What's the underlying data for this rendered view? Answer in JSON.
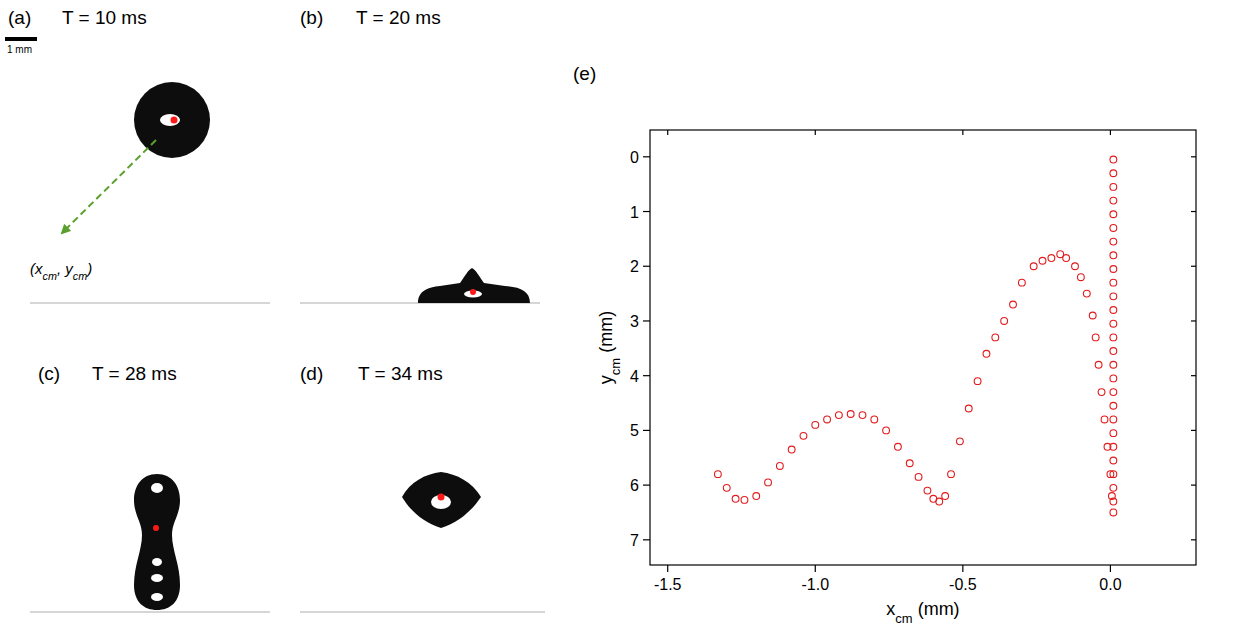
{
  "panels": [
    {
      "letter": "(a)",
      "time": "T = 10 ms"
    },
    {
      "letter": "(b)",
      "time": "T = 20 ms"
    },
    {
      "letter": "(c)",
      "time": "T = 28 ms"
    },
    {
      "letter": "(d)",
      "time": "T = 34 ms"
    }
  ],
  "scale_bar": "1 mm",
  "annotation": [
    {
      "text": "(x"
    },
    {
      "text": "cm",
      "sub": true
    },
    {
      "text": ", y"
    },
    {
      "text": "cm",
      "sub": true
    },
    {
      "text": ")"
    }
  ],
  "chart_label": "(e)",
  "chart_data": {
    "type": "scatter",
    "x_label": [
      {
        "text": "x"
      },
      {
        "text": "cm",
        "sub": true
      },
      {
        "text": " (mm)"
      }
    ],
    "y_label": [
      {
        "text": "y"
      },
      {
        "text": "cm",
        "sub": true
      },
      {
        "text": " (mm)"
      }
    ],
    "xlim": [
      -1.56,
      0.29
    ],
    "ylim": [
      7.46,
      -0.49
    ],
    "xticks": [
      -1.5,
      {
        "value": -1.0,
        "label": "-1.0"
      },
      -0.5,
      {
        "value": 0.0,
        "label": "0.0"
      }
    ],
    "yticks": [
      0,
      1,
      2,
      3,
      4,
      5,
      6,
      7
    ],
    "series": [
      {
        "color": "#e31a1c",
        "marker": "open-circle",
        "x": [
          0.01,
          0.01,
          0.01,
          0.01,
          0.01,
          0.01,
          0.01,
          0.01,
          0.01,
          0.01,
          0.01,
          0.01,
          0.01,
          0.01,
          0.01,
          0.01,
          0.01,
          0.01,
          0.01,
          0.01,
          0.01,
          0.01,
          0.01,
          0.01,
          0.01,
          0.01,
          0.01,
          0.005,
          0.0,
          -0.01,
          -0.02,
          -0.03,
          -0.04,
          -0.05,
          -0.06,
          -0.08,
          -0.1,
          -0.12,
          -0.15,
          -0.17,
          -0.2,
          -0.23,
          -0.26,
          -0.3,
          -0.33,
          -0.36,
          -0.39,
          -0.42,
          -0.45,
          -0.48,
          -0.51,
          -0.54,
          -0.56,
          -0.58,
          -0.6,
          -0.62,
          -0.65,
          -0.68,
          -0.72,
          -0.76,
          -0.8,
          -0.84,
          -0.88,
          -0.92,
          -0.96,
          -1.0,
          -1.04,
          -1.08,
          -1.12,
          -1.16,
          -1.2,
          -1.24,
          -1.27,
          -1.3,
          -1.33
        ],
        "values": [
          0.05,
          0.3,
          0.55,
          0.8,
          1.05,
          1.3,
          1.55,
          1.8,
          2.05,
          2.3,
          2.55,
          2.8,
          3.05,
          3.3,
          3.55,
          3.8,
          4.05,
          4.3,
          4.55,
          4.8,
          5.05,
          5.3,
          5.55,
          5.8,
          6.05,
          6.3,
          6.5,
          6.2,
          5.8,
          5.3,
          4.8,
          4.3,
          3.8,
          3.3,
          2.9,
          2.5,
          2.2,
          2.0,
          1.85,
          1.78,
          1.85,
          1.9,
          2.0,
          2.3,
          2.7,
          3.0,
          3.3,
          3.6,
          4.1,
          4.6,
          5.2,
          5.8,
          6.2,
          6.3,
          6.25,
          6.1,
          5.85,
          5.6,
          5.3,
          5.0,
          4.8,
          4.72,
          4.7,
          4.72,
          4.8,
          4.9,
          5.1,
          5.35,
          5.65,
          5.95,
          6.2,
          6.27,
          6.25,
          6.05,
          5.8
        ]
      }
    ]
  }
}
